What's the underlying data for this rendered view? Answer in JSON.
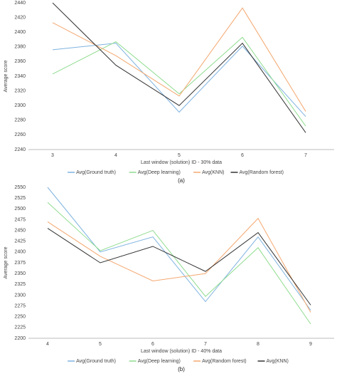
{
  "chart_data": [
    {
      "type": "line",
      "xlabel": "Last window (solution) ID - 30% data",
      "ylabel": "Average score",
      "caption": "(a)",
      "categories": [
        "3",
        "4",
        "5",
        "6",
        "7"
      ],
      "series": [
        {
          "name": "Avg(Ground truth)",
          "color": "#7fb3e0",
          "values": [
            2376,
            2385,
            2291,
            2381,
            2285
          ]
        },
        {
          "name": "Avg(Deep learning)",
          "color": "#8fdc8f",
          "values": [
            2343,
            2387,
            2316,
            2393,
            2272
          ]
        },
        {
          "name": "Avg(KNN)",
          "color": "#f4a870",
          "values": [
            2413,
            2368,
            2313,
            2433,
            2292
          ]
        },
        {
          "name": "Avg(Random forest)",
          "color": "#333333",
          "values": [
            2440,
            2355,
            2300,
            2385,
            2263
          ]
        }
      ],
      "ylim": [
        2240,
        2440
      ],
      "yticks": [
        2240,
        2260,
        2280,
        2300,
        2320,
        2340,
        2360,
        2380,
        2400,
        2420,
        2440
      ],
      "grid": false
    },
    {
      "type": "line",
      "xlabel": "Last window (solution) ID - 40% data",
      "ylabel": "Average score",
      "caption": "(b)",
      "categories": [
        "4",
        "5",
        "6",
        "7",
        "8",
        "9"
      ],
      "series": [
        {
          "name": "Avg(Ground truth)",
          "color": "#7fb3e0",
          "values": [
            2550,
            2400,
            2435,
            2285,
            2435,
            2265
          ]
        },
        {
          "name": "Avg(Deep learning)",
          "color": "#8fdc8f",
          "values": [
            2515,
            2403,
            2450,
            2297,
            2410,
            2233
          ]
        },
        {
          "name": "Avg(Random forest)",
          "color": "#f4a870",
          "values": [
            2470,
            2390,
            2333,
            2350,
            2478,
            2260
          ]
        },
        {
          "name": "Avg(KNN)",
          "color": "#333333",
          "values": [
            2455,
            2375,
            2413,
            2355,
            2445,
            2277
          ]
        }
      ],
      "ylim": [
        2200,
        2550
      ],
      "yticks": [
        2200,
        2225,
        2250,
        2275,
        2300,
        2325,
        2350,
        2375,
        2400,
        2425,
        2450,
        2475,
        2500,
        2525,
        2550
      ],
      "grid": false
    }
  ]
}
